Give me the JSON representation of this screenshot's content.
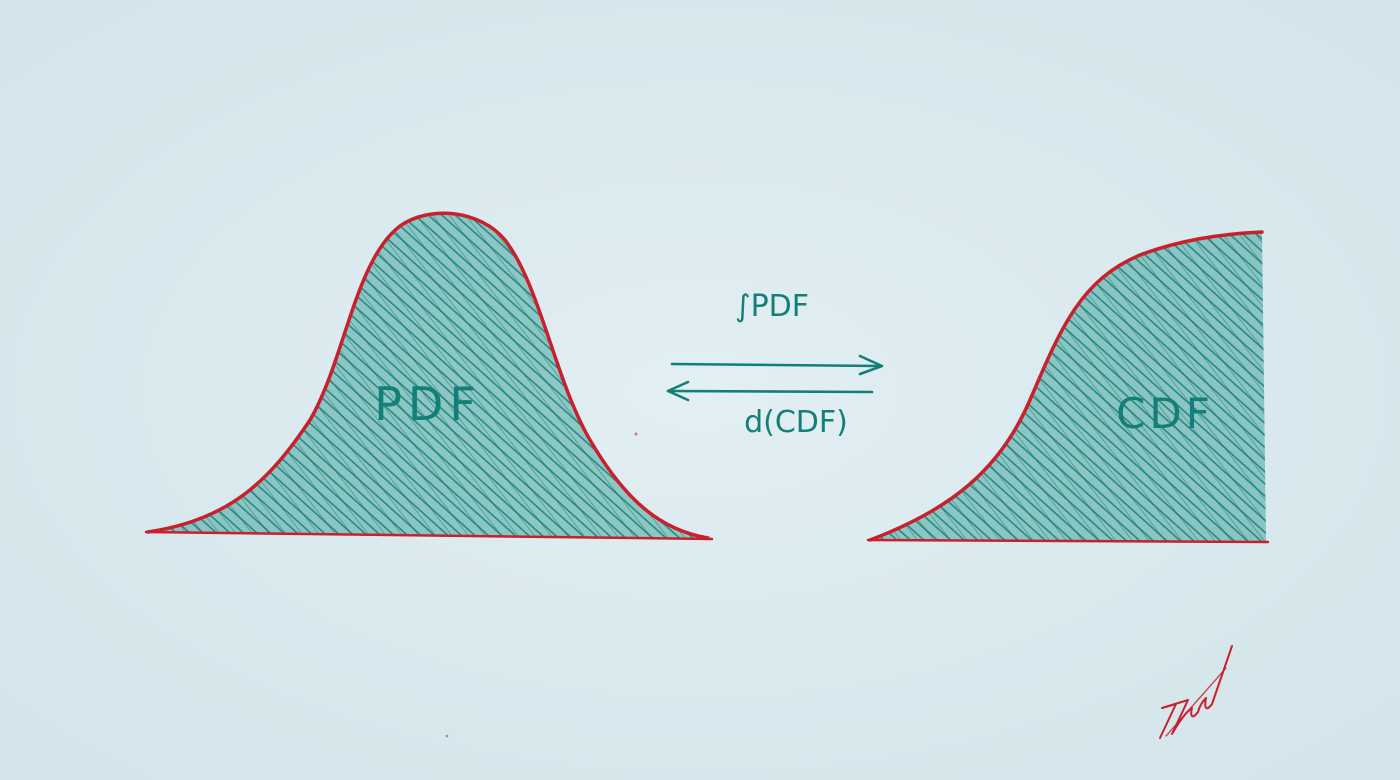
{
  "palette": {
    "paper": "#dcebef",
    "ink_teal": "#137f78",
    "fill_teal": "#2a9a8e",
    "ink_red": "#c8202c"
  },
  "diagram": {
    "pdf_label": "PDF",
    "cdf_label": "CDF",
    "arrow_forward_label": "∫PDF",
    "arrow_back_label": "d(CDF)",
    "signature": "Zakir"
  }
}
